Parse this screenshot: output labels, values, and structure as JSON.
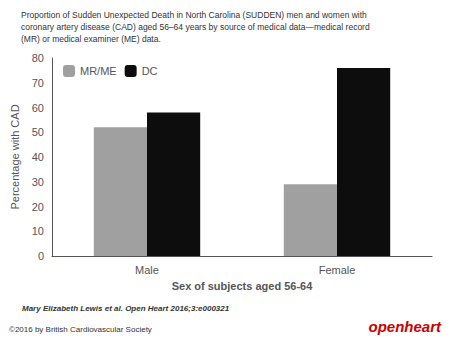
{
  "chart_data": {
    "type": "bar",
    "title": "Proportion of Sudden Unexpected Death in North Carolina (SUDDEN) men and women with\ncoronary artery disease (CAD) aged 56–64 years by source of medical data—medical record\n(MR) or medical examiner (ME) data.",
    "categories": [
      "Male",
      "Female"
    ],
    "series": [
      {
        "name": "MR/ME",
        "values": [
          52,
          29
        ],
        "color": "#a0a0a0"
      },
      {
        "name": "DC",
        "values": [
          58,
          76
        ],
        "color": "#0d0d0d"
      }
    ],
    "xlabel": "Sex of subjects aged 56-64",
    "ylabel": "Percentage with CAD",
    "ylim": [
      0,
      80
    ],
    "yticks": [
      0,
      10,
      20,
      30,
      40,
      50,
      60,
      70,
      80
    ],
    "grid": false,
    "legend": "upper left",
    "annotations": [
      {
        "text": "Mary Elizabeth Lewis et al. Open Heart 2016;3:e000321"
      },
      {
        "text": "©2016 by British Cardiovascular Society"
      },
      {
        "text": "openheart",
        "color": "#cc0000"
      }
    ]
  }
}
